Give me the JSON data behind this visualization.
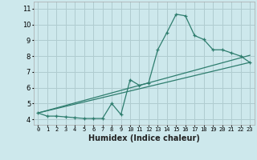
{
  "xlabel": "Humidex (Indice chaleur)",
  "x_ticks": [
    0,
    1,
    2,
    3,
    4,
    5,
    6,
    7,
    8,
    9,
    10,
    11,
    12,
    13,
    14,
    15,
    16,
    17,
    18,
    19,
    20,
    21,
    22,
    23
  ],
  "y_ticks": [
    4,
    5,
    6,
    7,
    8,
    9,
    10,
    11
  ],
  "xlim": [
    -0.5,
    23.5
  ],
  "ylim": [
    3.65,
    11.45
  ],
  "bg_color": "#cde8ec",
  "grid_color": "#b0ccd0",
  "line_color": "#2e7d6e",
  "curve_x": [
    0,
    1,
    2,
    3,
    4,
    5,
    6,
    7,
    8,
    9,
    10,
    11,
    12,
    13,
    14,
    15,
    16,
    17,
    18,
    19,
    20,
    21,
    22,
    23
  ],
  "curve_y": [
    4.4,
    4.2,
    4.2,
    4.15,
    4.1,
    4.05,
    4.05,
    4.05,
    5.0,
    4.3,
    6.5,
    6.15,
    6.3,
    8.4,
    9.5,
    10.65,
    10.55,
    9.3,
    9.05,
    8.4,
    8.4,
    8.2,
    8.0,
    7.6
  ],
  "line1_x": [
    0,
    23
  ],
  "line1_y": [
    4.4,
    7.6
  ],
  "line2_x": [
    0,
    23
  ],
  "line2_y": [
    4.4,
    8.05
  ]
}
